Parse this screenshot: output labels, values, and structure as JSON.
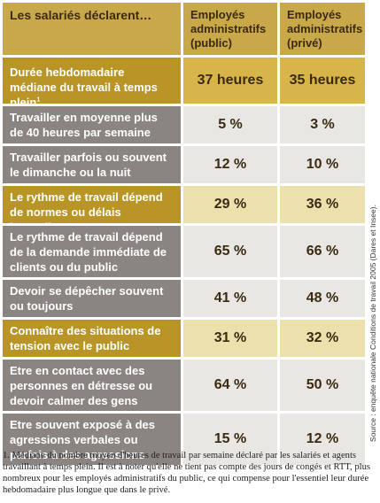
{
  "header": {
    "label": "Les salariés déclarent…",
    "col_public": "Employés administratifs (public)",
    "col_prive": "Employés administratifs (privé)"
  },
  "rows": [
    {
      "label": "Durée hebdomadaire médiane du travail à temps plein",
      "sup": "1",
      "public": "37 heures",
      "prive": "35 heures"
    },
    {
      "label": "Travailler en moyenne plus de 40 heures par semaine",
      "public": "5 %",
      "prive": "3 %"
    },
    {
      "label": "Travailler parfois ou souvent le dimanche ou la nuit",
      "public": "12 %",
      "prive": "10 %"
    },
    {
      "label": "Le rythme de travail dépend de normes ou délais journaliers",
      "public": "29 %",
      "prive": "36 %"
    },
    {
      "label": "Le rythme de travail dépend de la demande immédiate de clients ou du public",
      "public": "65 %",
      "prive": "66 %"
    },
    {
      "label": "Devoir se dépêcher souvent ou toujours",
      "public": "41 %",
      "prive": "48 %"
    },
    {
      "label": "Connaître des situations de tension avec le public",
      "public": "31 %",
      "prive": "32 %"
    },
    {
      "label": "Etre en contact avec des personnes en détresse ou devoir calmer des gens",
      "public": "64 %",
      "prive": "50 %"
    },
    {
      "label": "Etre souvent exposé à des agressions verbales ou parfois à des agressions physiques",
      "public": "15 %",
      "prive": "12 %"
    }
  ],
  "source": "Source : enquête nationale Conditions de travail 2005 (Dares et Insee).",
  "footnote": "1. Médiane du nombre moyen d'heures de travail par semaine déclaré par les salariés et agents travaillant à temps plein. Il est à noter qu'elle ne tient pas compte des jours de congés et RTT, plus nombreux pour les employés administratifs du public, ce qui compense pour l'essentiel leur durée hebdomadaire plus longue que dans le privé."
}
